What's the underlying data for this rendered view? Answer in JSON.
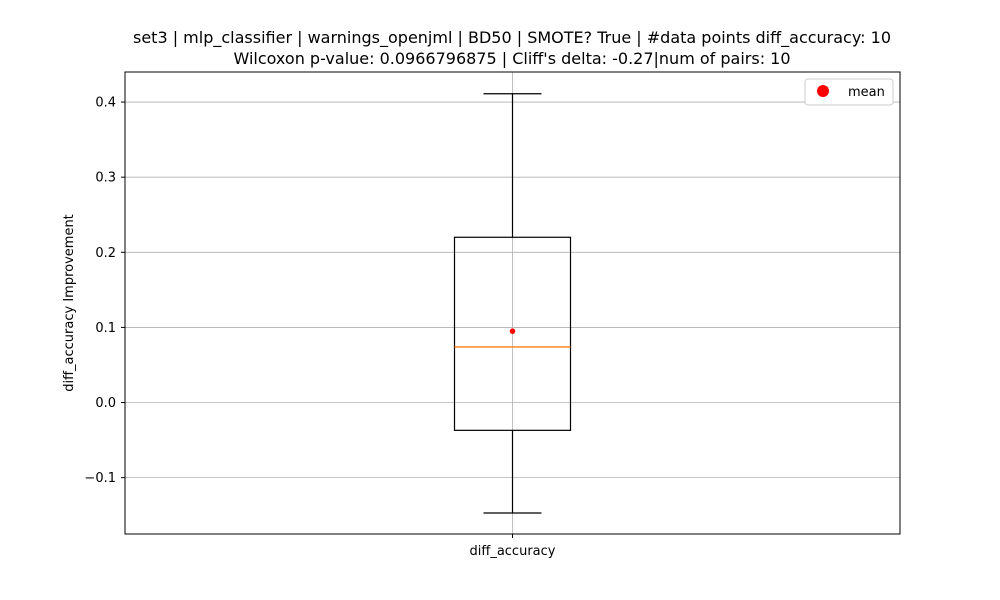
{
  "chart_data": {
    "type": "box",
    "title": [
      "set3 | mlp_classifier | warnings_openjml | BD50 | SMOTE? True | #data points diff_accuracy: 10",
      "Wilcoxon p-value: 0.0966796875 | Cliff's delta: -0.27|num of pairs: 10"
    ],
    "xlabel": "",
    "ylabel": "diff_accuracy Improvement",
    "categories": [
      "diff_accuracy"
    ],
    "ylim": [
      -0.175,
      0.44
    ],
    "yticks": [
      -0.1,
      0.0,
      0.1,
      0.2,
      0.3,
      0.4
    ],
    "ytick_labels": [
      "−0.1",
      "0.0",
      "0.1",
      "0.2",
      "0.3",
      "0.4"
    ],
    "grid": true,
    "legend": {
      "position": "top-right",
      "entries": [
        "mean"
      ]
    },
    "boxes": [
      {
        "category": "diff_accuracy",
        "whisker_low": -0.147,
        "q1": -0.037,
        "median": 0.074,
        "q3": 0.22,
        "whisker_high": 0.411,
        "mean": 0.095
      }
    ],
    "colors": {
      "box": "#000000",
      "median": "#ff7f0e",
      "mean": "#ff0000",
      "grid": "#b0b0b0"
    }
  }
}
